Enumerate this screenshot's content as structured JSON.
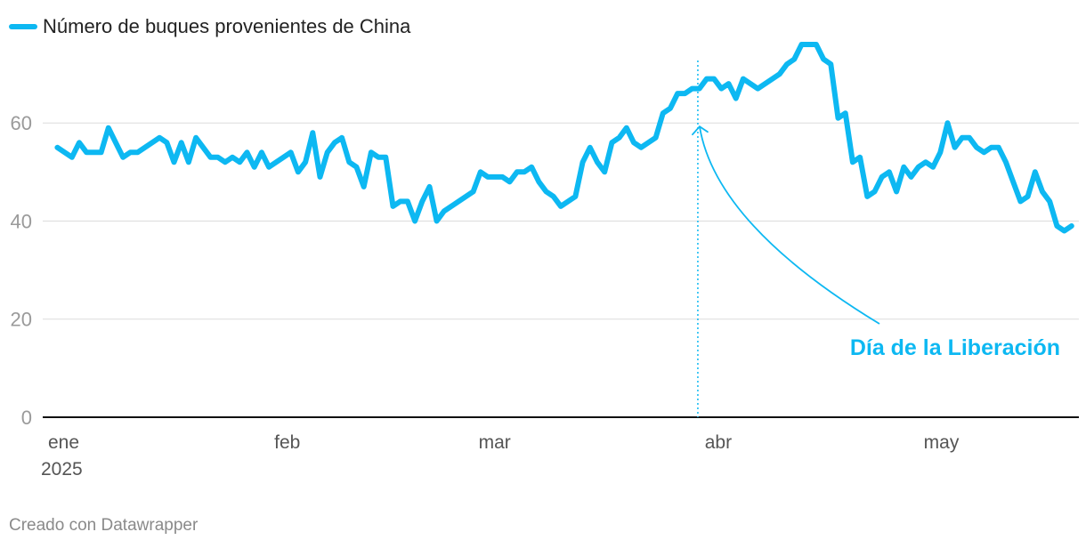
{
  "legend": {
    "label": "Número de buques provenientes de China"
  },
  "colors": {
    "series": "#0db8f2",
    "grid": "#dcdcdc",
    "axis": "#111111",
    "tick_text": "#9a9a9a",
    "month_text": "#555555"
  },
  "chart_data": {
    "type": "line",
    "y_ticks": [
      "0",
      "20",
      "40",
      "60"
    ],
    "ylim": [
      0,
      76
    ],
    "xlim": [
      "2025-01-01",
      "2025-05-23"
    ],
    "grid": true,
    "legend_position": "top-left",
    "x_tick_labels": [
      {
        "label": "ene",
        "sub": "2025",
        "date": "2025-01-01"
      },
      {
        "label": "feb",
        "sub": "",
        "date": "2025-02-01"
      },
      {
        "label": "mar",
        "sub": "",
        "date": "2025-03-01"
      },
      {
        "label": "abr",
        "sub": "",
        "date": "2025-04-01"
      },
      {
        "label": "may",
        "sub": "",
        "date": "2025-05-01"
      }
    ],
    "series": [
      {
        "name": "Número de buques provenientes de China",
        "points": [
          [
            "2025-01-03",
            55
          ],
          [
            "2025-01-04",
            54
          ],
          [
            "2025-01-05",
            53
          ],
          [
            "2025-01-06",
            56
          ],
          [
            "2025-01-07",
            54
          ],
          [
            "2025-01-08",
            54
          ],
          [
            "2025-01-09",
            54
          ],
          [
            "2025-01-10",
            59
          ],
          [
            "2025-01-11",
            56
          ],
          [
            "2025-01-12",
            53
          ],
          [
            "2025-01-13",
            54
          ],
          [
            "2025-01-14",
            54
          ],
          [
            "2025-01-15",
            55
          ],
          [
            "2025-01-16",
            56
          ],
          [
            "2025-01-17",
            57
          ],
          [
            "2025-01-18",
            56
          ],
          [
            "2025-01-19",
            52
          ],
          [
            "2025-01-20",
            56
          ],
          [
            "2025-01-21",
            52
          ],
          [
            "2025-01-22",
            57
          ],
          [
            "2025-01-23",
            55
          ],
          [
            "2025-01-24",
            53
          ],
          [
            "2025-01-25",
            53
          ],
          [
            "2025-01-26",
            52
          ],
          [
            "2025-01-27",
            53
          ],
          [
            "2025-01-28",
            52
          ],
          [
            "2025-01-29",
            54
          ],
          [
            "2025-01-30",
            51
          ],
          [
            "2025-01-31",
            54
          ],
          [
            "2025-02-01",
            51
          ],
          [
            "2025-02-02",
            52
          ],
          [
            "2025-02-03",
            53
          ],
          [
            "2025-02-04",
            54
          ],
          [
            "2025-02-05",
            50
          ],
          [
            "2025-02-06",
            52
          ],
          [
            "2025-02-07",
            58
          ],
          [
            "2025-02-08",
            49
          ],
          [
            "2025-02-09",
            54
          ],
          [
            "2025-02-10",
            56
          ],
          [
            "2025-02-11",
            57
          ],
          [
            "2025-02-12",
            52
          ],
          [
            "2025-02-13",
            51
          ],
          [
            "2025-02-14",
            47
          ],
          [
            "2025-02-15",
            54
          ],
          [
            "2025-02-16",
            53
          ],
          [
            "2025-02-17",
            53
          ],
          [
            "2025-02-18",
            43
          ],
          [
            "2025-02-19",
            44
          ],
          [
            "2025-02-20",
            44
          ],
          [
            "2025-02-21",
            40
          ],
          [
            "2025-02-22",
            44
          ],
          [
            "2025-02-23",
            47
          ],
          [
            "2025-02-24",
            40
          ],
          [
            "2025-02-25",
            42
          ],
          [
            "2025-02-26",
            43
          ],
          [
            "2025-02-27",
            44
          ],
          [
            "2025-02-28",
            45
          ],
          [
            "2025-03-01",
            46
          ],
          [
            "2025-03-02",
            50
          ],
          [
            "2025-03-03",
            49
          ],
          [
            "2025-03-04",
            49
          ],
          [
            "2025-03-05",
            49
          ],
          [
            "2025-03-06",
            48
          ],
          [
            "2025-03-07",
            50
          ],
          [
            "2025-03-08",
            50
          ],
          [
            "2025-03-09",
            51
          ],
          [
            "2025-03-10",
            48
          ],
          [
            "2025-03-11",
            46
          ],
          [
            "2025-03-12",
            45
          ],
          [
            "2025-03-13",
            43
          ],
          [
            "2025-03-14",
            44
          ],
          [
            "2025-03-15",
            45
          ],
          [
            "2025-03-16",
            52
          ],
          [
            "2025-03-17",
            55
          ],
          [
            "2025-03-18",
            52
          ],
          [
            "2025-03-19",
            50
          ],
          [
            "2025-03-20",
            56
          ],
          [
            "2025-03-21",
            57
          ],
          [
            "2025-03-22",
            59
          ],
          [
            "2025-03-23",
            56
          ],
          [
            "2025-03-24",
            55
          ],
          [
            "2025-03-25",
            56
          ],
          [
            "2025-03-26",
            57
          ],
          [
            "2025-03-27",
            62
          ],
          [
            "2025-03-28",
            63
          ],
          [
            "2025-03-29",
            66
          ],
          [
            "2025-03-30",
            66
          ],
          [
            "2025-03-31",
            67
          ],
          [
            "2025-04-01",
            67
          ],
          [
            "2025-04-02",
            69
          ],
          [
            "2025-04-03",
            69
          ],
          [
            "2025-04-04",
            67
          ],
          [
            "2025-04-05",
            68
          ],
          [
            "2025-04-06",
            65
          ],
          [
            "2025-04-07",
            69
          ],
          [
            "2025-04-08",
            68
          ],
          [
            "2025-04-09",
            67
          ],
          [
            "2025-04-10",
            68
          ],
          [
            "2025-04-11",
            69
          ],
          [
            "2025-04-12",
            70
          ],
          [
            "2025-04-13",
            72
          ],
          [
            "2025-04-14",
            73
          ],
          [
            "2025-04-15",
            76
          ],
          [
            "2025-04-16",
            76
          ],
          [
            "2025-04-17",
            76
          ],
          [
            "2025-04-18",
            73
          ],
          [
            "2025-04-19",
            72
          ],
          [
            "2025-04-20",
            61
          ],
          [
            "2025-04-21",
            62
          ],
          [
            "2025-04-22",
            52
          ],
          [
            "2025-04-23",
            53
          ],
          [
            "2025-04-24",
            45
          ],
          [
            "2025-04-25",
            46
          ],
          [
            "2025-04-26",
            49
          ],
          [
            "2025-04-27",
            50
          ],
          [
            "2025-04-28",
            46
          ],
          [
            "2025-04-29",
            51
          ],
          [
            "2025-04-30",
            49
          ],
          [
            "2025-05-01",
            51
          ],
          [
            "2025-05-02",
            52
          ],
          [
            "2025-05-03",
            51
          ],
          [
            "2025-05-04",
            54
          ],
          [
            "2025-05-05",
            60
          ],
          [
            "2025-05-06",
            55
          ],
          [
            "2025-05-07",
            57
          ],
          [
            "2025-05-08",
            57
          ],
          [
            "2025-05-09",
            55
          ],
          [
            "2025-05-10",
            54
          ],
          [
            "2025-05-11",
            55
          ],
          [
            "2025-05-12",
            55
          ],
          [
            "2025-05-13",
            52
          ],
          [
            "2025-05-14",
            48
          ],
          [
            "2025-05-15",
            44
          ],
          [
            "2025-05-16",
            45
          ],
          [
            "2025-05-17",
            50
          ],
          [
            "2025-05-18",
            46
          ],
          [
            "2025-05-19",
            44
          ],
          [
            "2025-05-20",
            39
          ],
          [
            "2025-05-21",
            38
          ],
          [
            "2025-05-22",
            39
          ]
        ]
      }
    ],
    "annotations": [
      {
        "text": "Día de la Liberación",
        "date": "2025-04-02",
        "arrow_to_y": 60
      }
    ]
  },
  "footer": {
    "credit": "Creado con Datawrapper"
  }
}
